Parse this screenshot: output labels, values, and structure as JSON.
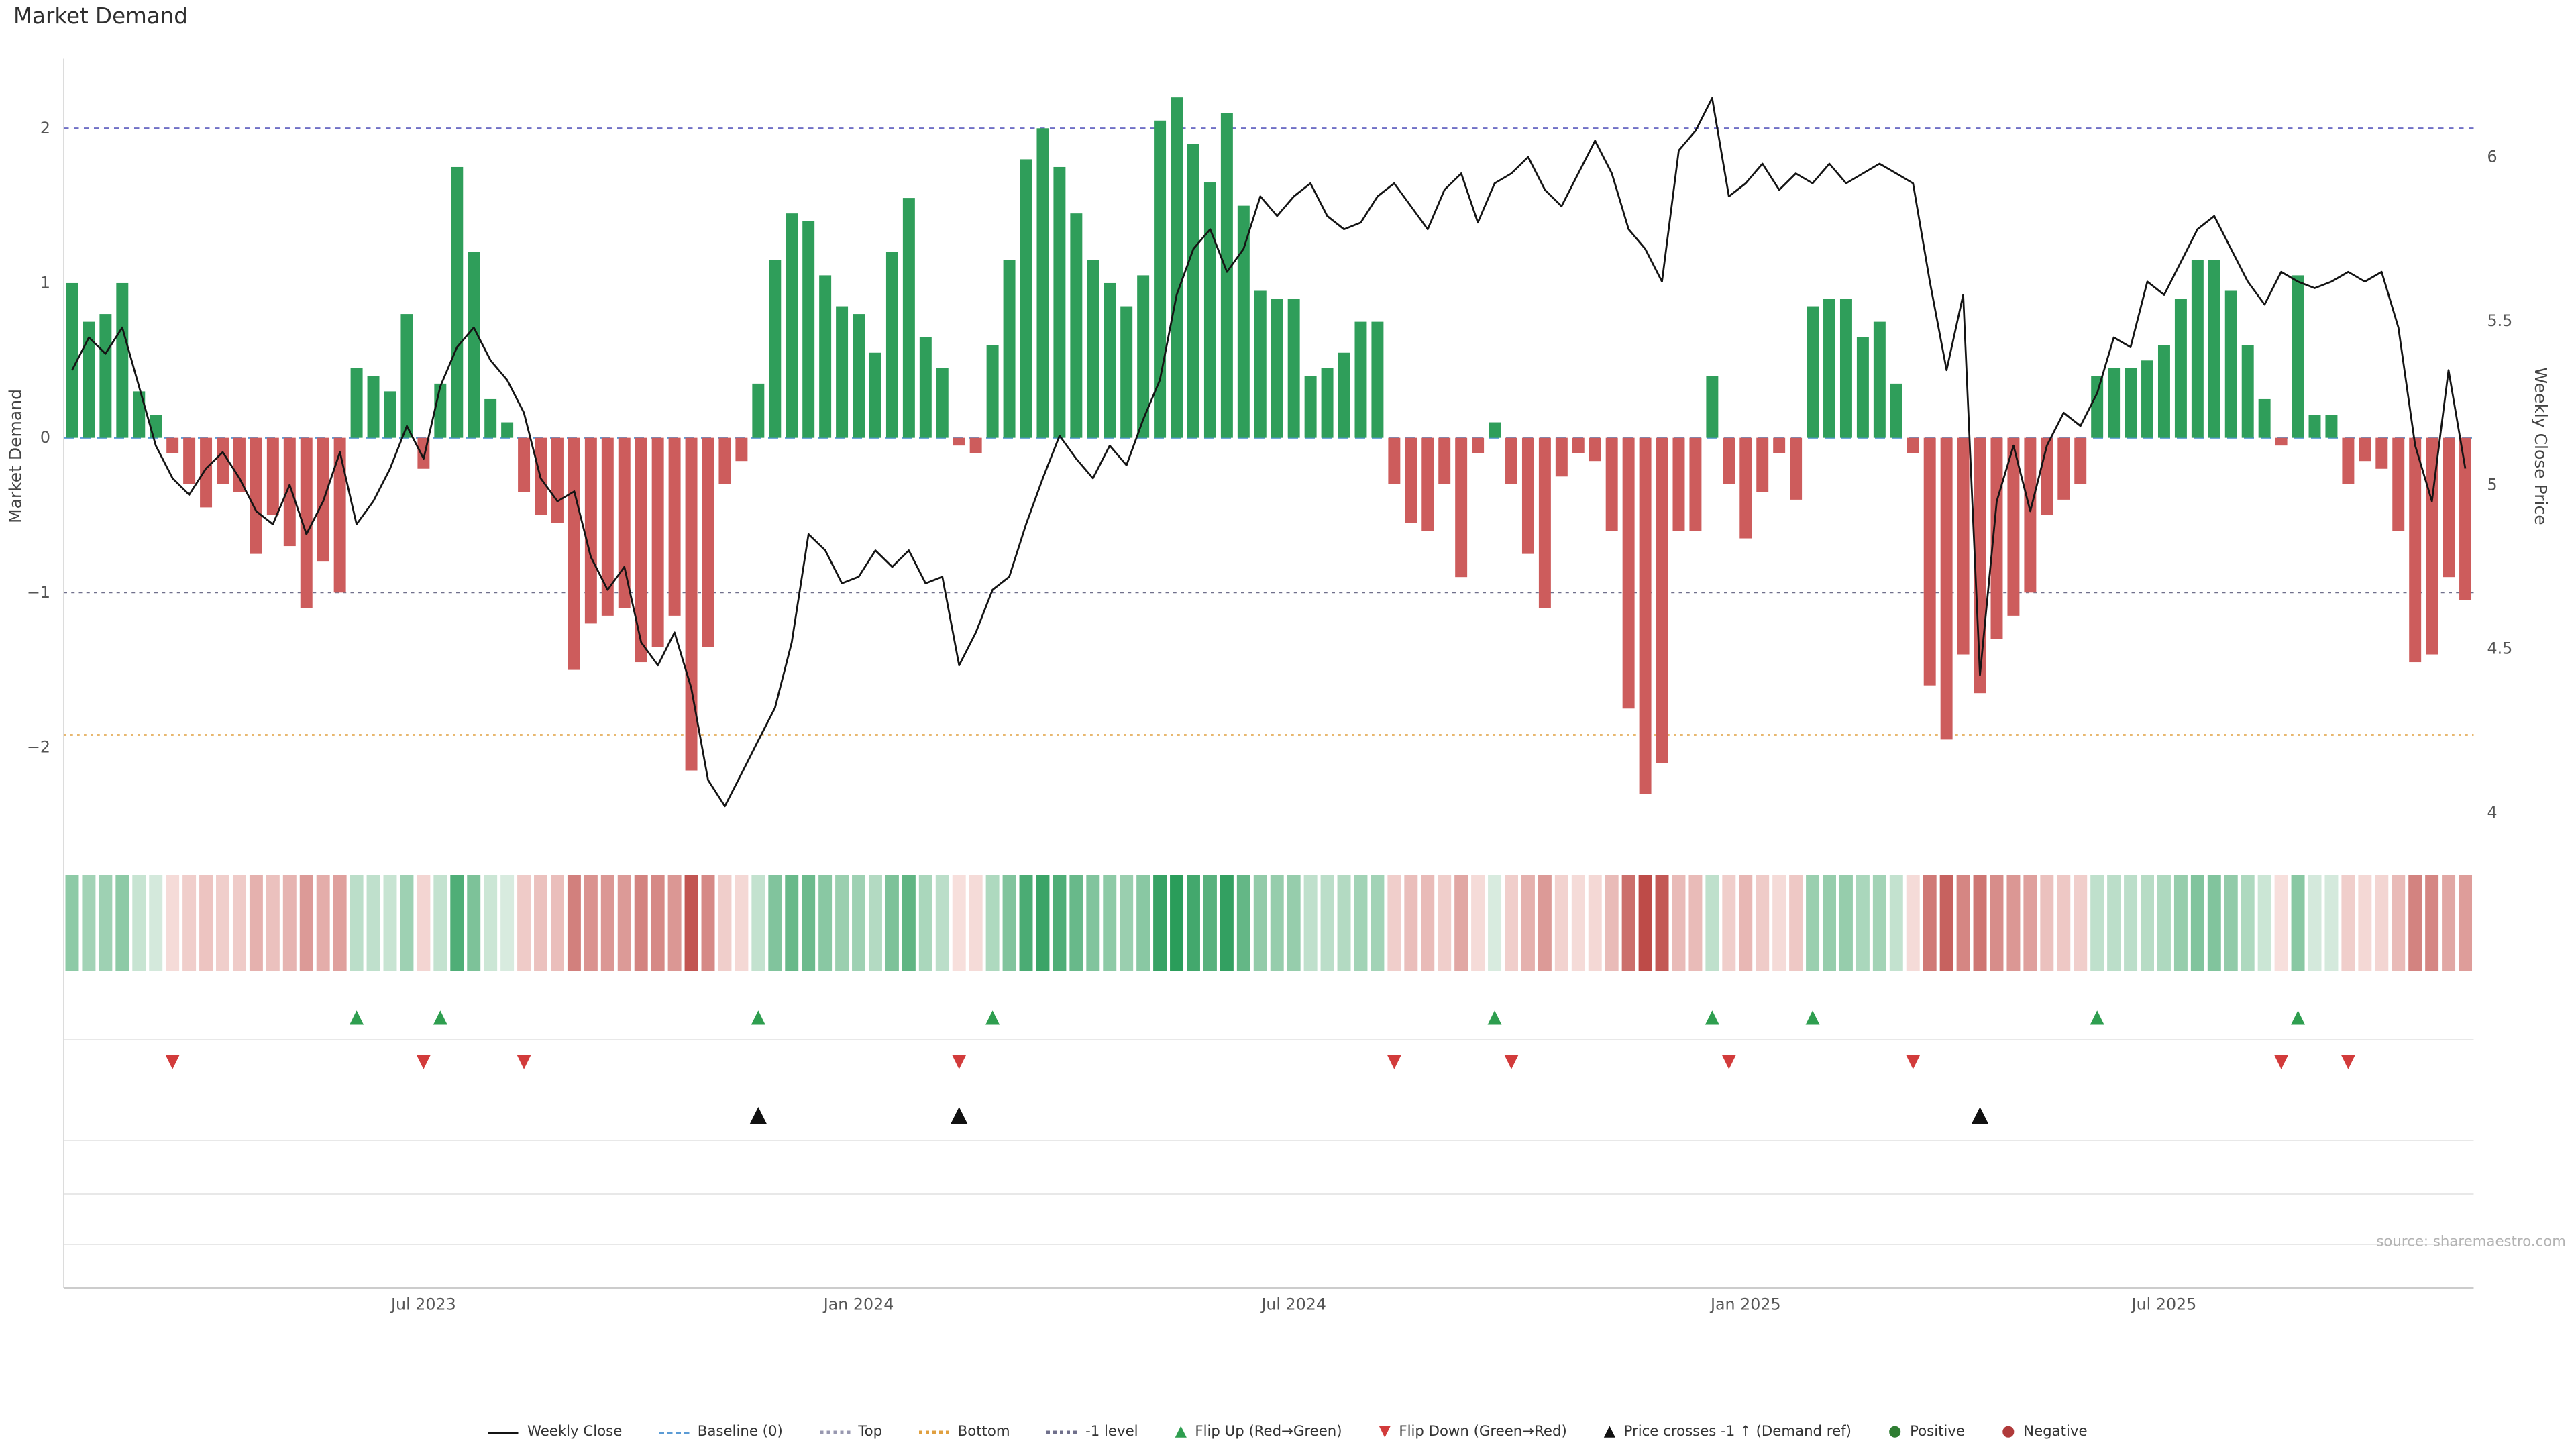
{
  "title": "Market Demand",
  "source_note": "source: sharemaestro.com",
  "axes": {
    "left_label": "Market Demand",
    "right_label": "Weekly Close Price",
    "left_tick_labels": [
      "2",
      "1",
      "0",
      "−1",
      "−2"
    ],
    "left_tick_values": [
      2,
      1,
      0,
      -1,
      -2
    ],
    "right_tick_labels": [
      "6",
      "5.5",
      "5",
      "4.5",
      "4"
    ],
    "right_tick_values": [
      6,
      5.5,
      5,
      4.5,
      4
    ],
    "x_tick_labels": [
      "Jul 2023",
      "Jan 2024",
      "Jul 2024",
      "Jan 2025",
      "Jul 2025"
    ]
  },
  "colors": {
    "positive_bar": "#2f9e5a",
    "negative_bar": "#cd5c5c",
    "price_line": "#141414",
    "baseline": "#5b9bd5",
    "top_level": "#6f6fc5",
    "bottom_level": "#e0a040",
    "minus_one_level": "#70708c",
    "flip_up": "#2e9e4f",
    "flip_down": "#d23b3b",
    "price_cross": "#111111",
    "positive_dot": "#2e7d32",
    "negative_dot": "#b03a3a"
  },
  "chart_data": {
    "type": "bar+line",
    "title": "Market Demand",
    "frequency": "weekly",
    "ylabel_left": "Market Demand",
    "ylabel_right": "Weekly Close Price",
    "x_tick_indices": [
      21,
      47,
      73,
      100,
      125
    ],
    "demand_ylim": [
      -2.72,
      2.45
    ],
    "price_ylim": [
      3.86,
      6.3
    ],
    "levels": {
      "baseline": 0,
      "top": 2.0,
      "bottom": -1.92,
      "minus_one": -1.0
    },
    "demand": [
      1.0,
      0.75,
      0.8,
      1.0,
      0.3,
      0.15,
      -0.1,
      -0.3,
      -0.45,
      -0.3,
      -0.35,
      -0.75,
      -0.5,
      -0.7,
      -1.1,
      -0.8,
      -1.0,
      0.45,
      0.4,
      0.3,
      0.8,
      -0.2,
      0.35,
      1.75,
      1.2,
      0.25,
      0.1,
      -0.35,
      -0.5,
      -0.55,
      -1.5,
      -1.2,
      -1.15,
      -1.1,
      -1.45,
      -1.35,
      -1.15,
      -2.15,
      -1.35,
      -0.3,
      -0.15,
      0.35,
      1.15,
      1.45,
      1.4,
      1.05,
      0.85,
      0.8,
      0.55,
      1.2,
      1.55,
      0.65,
      0.45,
      -0.05,
      -0.1,
      0.6,
      1.15,
      1.8,
      2.0,
      1.75,
      1.45,
      1.15,
      1.0,
      0.85,
      1.05,
      2.05,
      2.2,
      1.9,
      1.65,
      2.1,
      1.5,
      0.95,
      0.9,
      0.9,
      0.4,
      0.45,
      0.55,
      0.75,
      0.75,
      -0.3,
      -0.55,
      -0.6,
      -0.3,
      -0.9,
      -0.1,
      0.1,
      -0.3,
      -0.75,
      -1.1,
      -0.25,
      -0.1,
      -0.15,
      -0.6,
      -1.75,
      -2.3,
      -2.1,
      -0.6,
      -0.6,
      0.4,
      -0.3,
      -0.65,
      -0.35,
      -0.1,
      -0.4,
      0.85,
      0.9,
      0.9,
      0.65,
      0.75,
      0.35,
      -0.1,
      -1.6,
      -1.95,
      -1.4,
      -1.65,
      -1.3,
      -1.15,
      -1.0,
      -0.5,
      -0.4,
      -0.3,
      0.4,
      0.45,
      0.45,
      0.5,
      0.6,
      0.9,
      1.15,
      1.15,
      0.95,
      0.6,
      0.25,
      -0.05,
      1.05,
      0.15,
      0.15,
      -0.3,
      -0.15,
      -0.2,
      -0.6,
      -1.45,
      -1.4,
      -0.9,
      -1.05
    ],
    "price": [
      5.35,
      5.45,
      5.4,
      5.48,
      5.3,
      5.12,
      5.02,
      4.97,
      5.05,
      5.1,
      5.02,
      4.92,
      4.88,
      5.0,
      4.85,
      4.95,
      5.1,
      4.88,
      4.95,
      5.05,
      5.18,
      5.08,
      5.3,
      5.42,
      5.48,
      5.38,
      5.32,
      5.22,
      5.02,
      4.95,
      4.98,
      4.78,
      4.68,
      4.75,
      4.52,
      4.45,
      4.55,
      4.38,
      4.1,
      4.02,
      4.12,
      4.22,
      4.32,
      4.52,
      4.85,
      4.8,
      4.7,
      4.72,
      4.8,
      4.75,
      4.8,
      4.7,
      4.72,
      4.45,
      4.55,
      4.68,
      4.72,
      4.88,
      5.02,
      5.15,
      5.08,
      5.02,
      5.12,
      5.06,
      5.2,
      5.32,
      5.58,
      5.72,
      5.78,
      5.65,
      5.72,
      5.88,
      5.82,
      5.88,
      5.92,
      5.82,
      5.78,
      5.8,
      5.88,
      5.92,
      5.85,
      5.78,
      5.9,
      5.95,
      5.8,
      5.92,
      5.95,
      6.0,
      5.9,
      5.85,
      5.95,
      6.05,
      5.95,
      5.78,
      5.72,
      5.62,
      6.02,
      6.08,
      6.18,
      5.88,
      5.92,
      5.98,
      5.9,
      5.95,
      5.92,
      5.98,
      5.92,
      5.95,
      5.98,
      5.95,
      5.92,
      5.62,
      5.35,
      5.58,
      4.42,
      4.95,
      5.12,
      4.92,
      5.12,
      5.22,
      5.18,
      5.28,
      5.45,
      5.42,
      5.62,
      5.58,
      5.68,
      5.78,
      5.82,
      5.72,
      5.62,
      5.55,
      5.65,
      5.62,
      5.6,
      5.62,
      5.65,
      5.62,
      5.65,
      5.48,
      5.12,
      4.95,
      5.35,
      5.05
    ],
    "flip_up_indices": [
      17,
      22,
      41,
      55,
      85,
      98,
      104,
      121,
      133
    ],
    "flip_down_indices": [
      6,
      21,
      27,
      53,
      79,
      86,
      99,
      110,
      132,
      136
    ],
    "price_cross_indices": [
      41,
      53,
      114
    ]
  },
  "legend": [
    {
      "label": "Weekly Close",
      "kind": "line",
      "color": "#141414",
      "icon": "weekly-close-line-swatch"
    },
    {
      "label": "Baseline (0)",
      "kind": "dash",
      "color": "#5b9bd5",
      "icon": "baseline-swatch"
    },
    {
      "label": "Top",
      "kind": "dot-line",
      "color": "#9898b0",
      "icon": "top-level-swatch"
    },
    {
      "label": "Bottom",
      "kind": "dot-line",
      "color": "#e0a040",
      "icon": "bottom-level-swatch"
    },
    {
      "label": "-1 level",
      "kind": "dot-line",
      "color": "#70708c",
      "icon": "minus-one-level-swatch"
    },
    {
      "label": "Flip Up (Red→Green)",
      "kind": "tri-up",
      "color": "#2e9e4f",
      "icon": "flip-up-triangle-icon"
    },
    {
      "label": "Flip Down (Green→Red)",
      "kind": "tri-down",
      "color": "#d23b3b",
      "icon": "flip-down-triangle-icon"
    },
    {
      "label": "Price crosses -1 ↑ (Demand ref)",
      "kind": "tri-up",
      "color": "#111111",
      "icon": "price-cross-triangle-icon"
    },
    {
      "label": "Positive",
      "kind": "dot",
      "color": "#2e7d32",
      "icon": "positive-dot-icon"
    },
    {
      "label": "Negative",
      "kind": "dot",
      "color": "#b03a3a",
      "icon": "negative-dot-icon"
    }
  ]
}
